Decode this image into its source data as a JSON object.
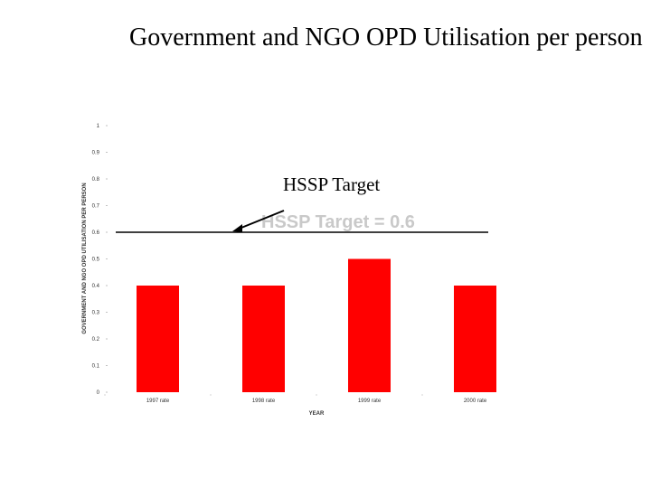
{
  "slide": {
    "title": "Government and NGO OPD Utilisation per person"
  },
  "annotation": {
    "label": "HSSP Target",
    "ghost_label": "HSSP Target = 0.6"
  },
  "colors": {
    "bar": "#ff0000",
    "target_line": "#000000",
    "ghost_text": "#c9c9c9"
  },
  "chart_data": {
    "type": "bar",
    "title": "",
    "xlabel": "YEAR",
    "ylabel": "GOVERNMENT AND NGO OPD UTILISATION PER PERSON",
    "categories": [
      "1997 rate",
      "1998 rate",
      "1999 rate",
      "2000 rate"
    ],
    "values": [
      0.4,
      0.4,
      0.5,
      0.4
    ],
    "ylim": [
      0,
      1
    ],
    "yticks": [
      0,
      0.1,
      0.2,
      0.3,
      0.4,
      0.5,
      0.6,
      0.7,
      0.8,
      0.9,
      1
    ],
    "ytick_labels": [
      "0",
      "0.1",
      "0.2",
      "0.3",
      "0.4",
      "0.5",
      "0.6",
      "0.7",
      "0.8",
      "0.9",
      "1"
    ],
    "target": {
      "value": 0.6,
      "label": "HSSP Target = 0.6"
    },
    "grid": false,
    "legend": "none"
  }
}
